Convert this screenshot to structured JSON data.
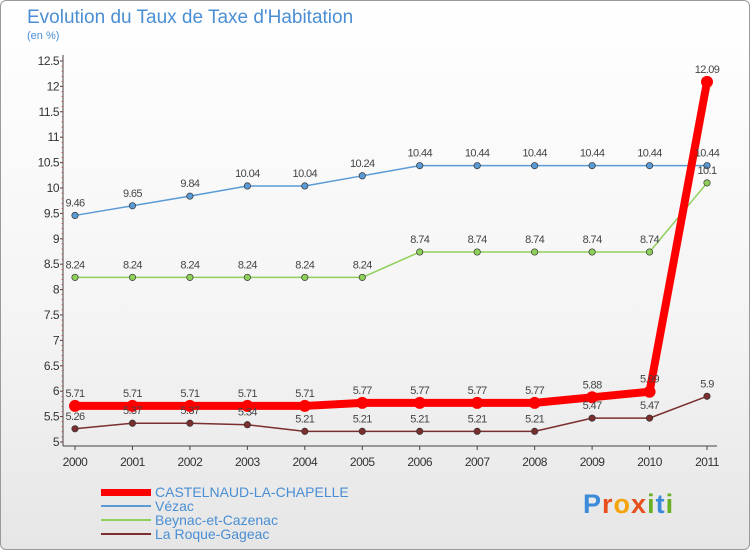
{
  "title": "Evolution du Taux de Taxe d'Habitation",
  "subtitle": "(en %)",
  "logo": {
    "letters": [
      "P",
      "r",
      "o",
      "x",
      "i",
      "t",
      "i"
    ],
    "colors": [
      "#3b8bd9",
      "#e94f1d",
      "#f5a30a",
      "#e94f1d",
      "#6ab023",
      "#3b8bd9",
      "#6ab023"
    ]
  },
  "chart_data": {
    "type": "line",
    "x": [
      "2000",
      "2001",
      "2002",
      "2003",
      "2004",
      "2005",
      "2006",
      "2007",
      "2008",
      "2009",
      "2010",
      "2011"
    ],
    "ylim": [
      5,
      12.5
    ],
    "yticks": [
      "5",
      "5.5",
      "6",
      "6.5",
      "7",
      "7.5",
      "8",
      "8.5",
      "9",
      "9.5",
      "10",
      "10.5",
      "11",
      "11.5",
      "12",
      "12.5"
    ],
    "grid": false,
    "legend_position": "bottom-left",
    "series": [
      {
        "name": "CASTELNAUD-LA-CHAPELLE",
        "color": "#ff0000",
        "values": [
          5.71,
          5.71,
          5.71,
          5.71,
          5.71,
          5.77,
          5.77,
          5.77,
          5.77,
          5.88,
          5.99,
          12.09
        ],
        "labels": [
          "5.71",
          "5.71",
          "5.71",
          "5.71",
          "5.71",
          "5.77",
          "5.77",
          "5.77",
          "5.77",
          "5.88",
          "5.99",
          "12.09"
        ],
        "emphasis": true
      },
      {
        "name": "Vézac",
        "color": "#5a9bd5",
        "values": [
          9.46,
          9.65,
          9.84,
          10.04,
          10.04,
          10.24,
          10.44,
          10.44,
          10.44,
          10.44,
          10.44,
          10.44
        ],
        "labels": [
          "9.46",
          "9.65",
          "9.84",
          "10.04",
          "10.04",
          "10.24",
          "10.44",
          "10.44",
          "10.44",
          "10.44",
          "10.44",
          "10.44"
        ]
      },
      {
        "name": "Beynac-et-Cazenac",
        "color": "#8fd05a",
        "values": [
          8.24,
          8.24,
          8.24,
          8.24,
          8.24,
          8.24,
          8.74,
          8.74,
          8.74,
          8.74,
          8.74,
          10.1
        ],
        "labels": [
          "8.24",
          "8.24",
          "8.24",
          "8.24",
          "8.24",
          "8.24",
          "8.74",
          "8.74",
          "8.74",
          "8.74",
          "8.74",
          "10.1"
        ]
      },
      {
        "name": "La Roque-Gageac",
        "color": "#7a2e2e",
        "values": [
          5.26,
          5.37,
          5.37,
          5.34,
          5.21,
          5.21,
          5.21,
          5.21,
          5.21,
          5.47,
          5.47,
          5.9
        ],
        "labels": [
          "5.26",
          "5.37",
          "5.37",
          "5.34",
          "5.21",
          "5.21",
          "5.21",
          "5.21",
          "5.21",
          "5.47",
          "5.47",
          "5.9"
        ]
      }
    ]
  }
}
